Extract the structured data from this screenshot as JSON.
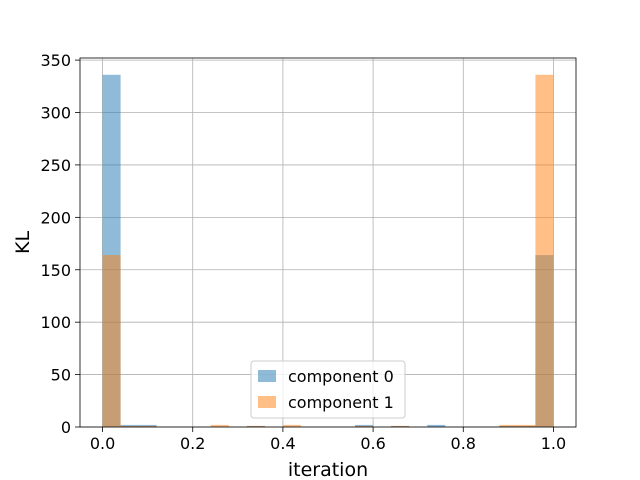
{
  "chart_data": {
    "type": "bar",
    "histogram": true,
    "bin_width": 0.04,
    "bin_starts": [
      0.0,
      0.04,
      0.08,
      0.12,
      0.16,
      0.2,
      0.24,
      0.28,
      0.32,
      0.36,
      0.4,
      0.44,
      0.48,
      0.52,
      0.56,
      0.6,
      0.64,
      0.68,
      0.72,
      0.76,
      0.8,
      0.84,
      0.88,
      0.92,
      0.96
    ],
    "series": [
      {
        "name": "component 0",
        "color": "#1f77b4",
        "values": [
          336,
          2,
          2,
          0,
          0,
          0,
          0,
          0,
          1,
          0,
          0,
          0,
          0,
          0,
          2,
          0,
          1,
          0,
          2,
          0,
          0,
          0,
          1,
          1,
          164
        ]
      },
      {
        "name": "component 1",
        "color": "#ff7f0e",
        "values": [
          164,
          1,
          1,
          0,
          0,
          0,
          2,
          0,
          1,
          0,
          2,
          0,
          0,
          0,
          1,
          0,
          1,
          0,
          0,
          0,
          0,
          0,
          2,
          2,
          336
        ]
      }
    ],
    "alpha": 0.5,
    "xlabel": "iteration",
    "ylabel": "KL",
    "xlim": [
      -0.05,
      1.05
    ],
    "ylim": [
      0,
      352
    ],
    "xticks": [
      0.0,
      0.2,
      0.4,
      0.6,
      0.8,
      1.0
    ],
    "xtick_labels": [
      "0.0",
      "0.2",
      "0.4",
      "0.6",
      "0.8",
      "1.0"
    ],
    "yticks": [
      0,
      50,
      100,
      150,
      200,
      250,
      300,
      350
    ],
    "ytick_labels": [
      "0",
      "50",
      "100",
      "150",
      "200",
      "250",
      "300",
      "350"
    ],
    "grid": true,
    "legend_position": "lower-center"
  }
}
